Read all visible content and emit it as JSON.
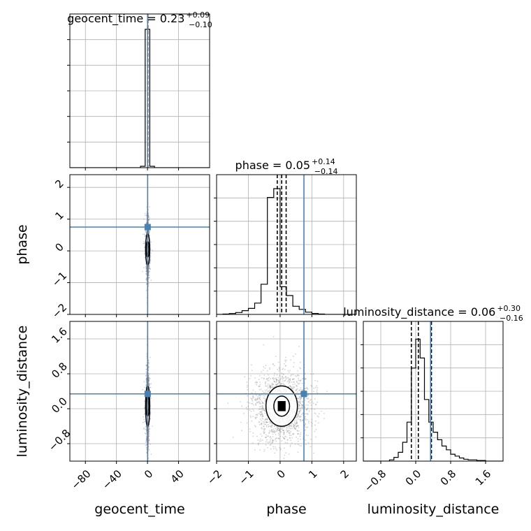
{
  "chart_data": {
    "type": "corner",
    "parameters": [
      "geocent_time",
      "phase",
      "luminosity_distance"
    ],
    "colors": {
      "truth": "#4682b4",
      "histogram": "#000000",
      "samples": "#7f7f7f",
      "grid": "#b0b0b0"
    },
    "grid": true,
    "axes": {
      "geocent_time": {
        "range": [
          -100,
          80
        ],
        "ticks": [
          -80,
          -40,
          0,
          40
        ],
        "tick_labels": [
          "−80",
          "−40",
          "0",
          "40"
        ],
        "xlabel": "geocent_time"
      },
      "phase": {
        "range": [
          -2,
          2.4
        ],
        "ticks": [
          -2,
          -1,
          0,
          1,
          2
        ],
        "tick_labels": [
          "−2",
          "−1",
          "0",
          "1",
          "2"
        ],
        "xlabel": "phase",
        "ylabel": "phase"
      },
      "luminosity_distance": {
        "range": [
          -1.2,
          2.0
        ],
        "ticks": [
          -0.8,
          0.0,
          0.8,
          1.6
        ],
        "tick_labels": [
          "−0.8",
          "0.0",
          "0.8",
          "1.6"
        ],
        "xlabel": "luminosity_distance",
        "ylabel": "luminosity_distance"
      }
    },
    "truths": {
      "geocent_time": 0.2,
      "phase": 0.75,
      "luminosity_distance": 0.34
    },
    "titles": [
      {
        "name": "geocent_time",
        "value": "0.23",
        "plus": "+0.09",
        "minus": "−0.10"
      },
      {
        "name": "phase",
        "value": "0.05",
        "plus": "+0.14",
        "minus": "−0.14"
      },
      {
        "name": "luminosity_distance",
        "value": "0.06",
        "plus": "+0.30",
        "minus": "−0.16"
      }
    ],
    "quantiles": {
      "geocent_time": [
        0.13,
        0.23,
        0.32
      ],
      "phase": [
        -0.09,
        0.05,
        0.19
      ],
      "luminosity_distance": [
        -0.1,
        0.06,
        0.36
      ]
    },
    "histograms": {
      "geocent_time": {
        "edges": [
          -9,
          -3,
          3,
          9
        ],
        "counts": [
          0.01,
          1.0,
          0.01
        ]
      },
      "phase": {
        "edges": [
          -1.8,
          -1.6,
          -1.4,
          -1.2,
          -1.0,
          -0.8,
          -0.6,
          -0.4,
          -0.2,
          0.0,
          0.2,
          0.4,
          0.6,
          0.8,
          1.0,
          1.2,
          1.4
        ],
        "counts": [
          0.003,
          0.007,
          0.015,
          0.03,
          0.048,
          0.09,
          0.24,
          0.93,
          1.0,
          0.22,
          0.15,
          0.065,
          0.04,
          0.018,
          0.008,
          0.003
        ]
      },
      "luminosity_distance": {
        "edges": [
          -0.6,
          -0.5,
          -0.4,
          -0.3,
          -0.2,
          -0.1,
          0.0,
          0.1,
          0.2,
          0.3,
          0.4,
          0.5,
          0.6,
          0.7,
          0.8,
          0.9,
          1.0,
          1.1,
          1.2,
          1.4,
          1.6
        ],
        "counts": [
          0.01,
          0.03,
          0.07,
          0.15,
          0.31,
          0.74,
          0.97,
          0.82,
          0.49,
          0.31,
          0.23,
          0.17,
          0.12,
          0.09,
          0.055,
          0.04,
          0.025,
          0.015,
          0.01,
          0.005
        ]
      }
    },
    "samples": {
      "center": {
        "geocent_time": 0.23,
        "phase": 0.05,
        "luminosity_distance": 0.06
      },
      "spread": {
        "geocent_time": 2.2,
        "phase": 0.45,
        "luminosity_distance": 0.42
      },
      "count": 1600
    }
  }
}
